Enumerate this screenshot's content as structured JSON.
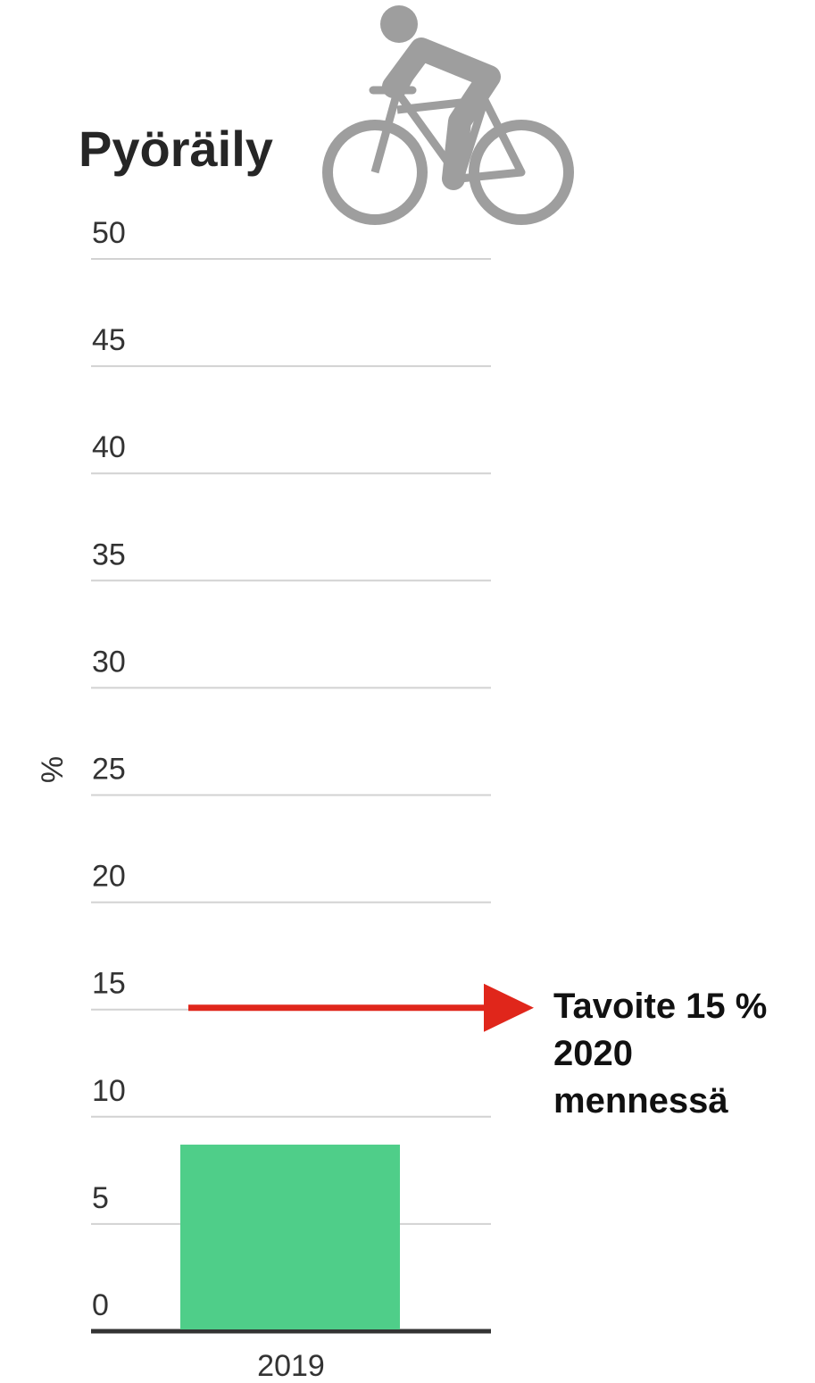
{
  "chart_data": {
    "type": "bar",
    "title": "Pyöräily",
    "ylabel": "%",
    "xlabel": "",
    "categories": [
      "2019"
    ],
    "values": [
      8.7
    ],
    "ylim": [
      0,
      50
    ],
    "yticks": [
      0,
      5,
      10,
      15,
      20,
      25,
      30,
      35,
      40,
      45,
      50
    ],
    "grid": true,
    "bar_color": "#4fce89",
    "icon": "bicycle-rider-icon",
    "icon_color": "#9e9e9e",
    "annotation": {
      "y": 15,
      "color": "#e0261b",
      "lines": [
        "Tavoite 15 %",
        "2020",
        "mennessä"
      ]
    }
  }
}
